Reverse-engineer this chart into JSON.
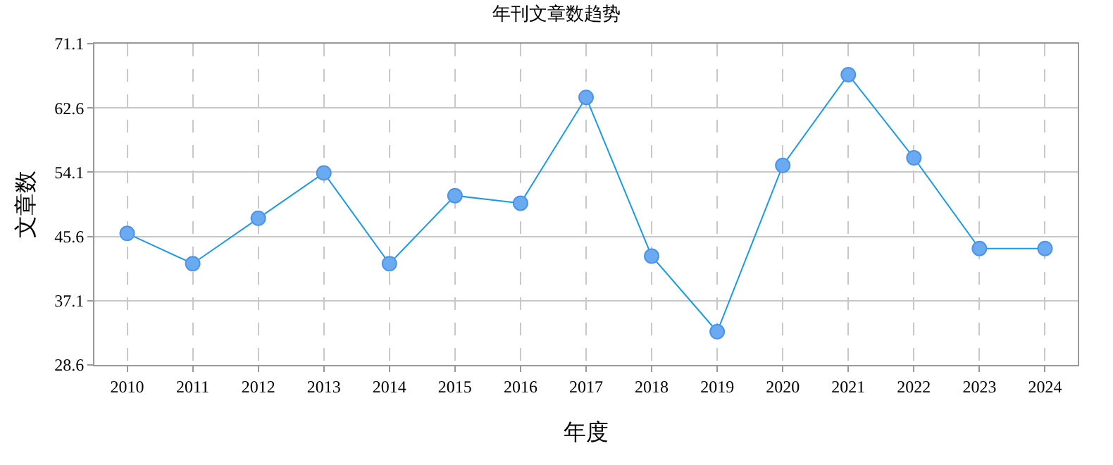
{
  "chart_data": {
    "type": "line",
    "title": "年刊文章数趋势",
    "xlabel": "年度",
    "ylabel": "文章数",
    "categories": [
      "2010",
      "2011",
      "2012",
      "2013",
      "2014",
      "2015",
      "2016",
      "2017",
      "2018",
      "2019",
      "2020",
      "2021",
      "2022",
      "2023",
      "2024"
    ],
    "series": [
      {
        "color": "#1a9be8",
        "values": [
          46,
          42,
          48,
          54,
          42,
          51,
          50,
          64,
          43,
          33,
          55,
          67,
          56,
          44,
          44
        ]
      }
    ],
    "ylim": [
      28.6,
      71.1
    ],
    "yticks": [
      28.6,
      37.1,
      45.6,
      54.1,
      62.6,
      71.1
    ],
    "grid": true,
    "marker": "circle",
    "line_style": "solid"
  }
}
